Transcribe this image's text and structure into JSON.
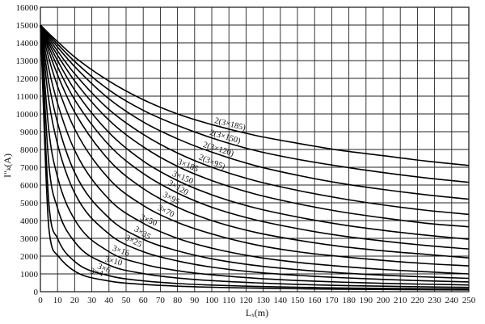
{
  "chart_data": {
    "type": "line",
    "title": "",
    "xlabel": "Lₓ(m)",
    "ylabel": "I\"ₖ(A)",
    "xlim": [
      0,
      250
    ],
    "ylim": [
      0,
      16000
    ],
    "x_ticks": [
      0,
      10,
      20,
      30,
      40,
      50,
      60,
      70,
      80,
      90,
      100,
      110,
      120,
      130,
      140,
      150,
      160,
      170,
      180,
      190,
      200,
      210,
      220,
      230,
      240,
      250
    ],
    "y_ticks": [
      0,
      1000,
      2000,
      3000,
      4000,
      5000,
      6000,
      7000,
      8000,
      9000,
      10000,
      11000,
      12000,
      13000,
      14000,
      15000,
      16000
    ],
    "grid": true,
    "x": [
      0,
      5,
      10,
      20,
      40,
      60,
      80,
      100,
      125,
      150,
      175,
      200,
      225,
      250
    ],
    "series": [
      {
        "name": "2(3×185)",
        "values": [
          15000,
          14520,
          14070,
          13200,
          11850,
          10800,
          10000,
          9400,
          8800,
          8350,
          7950,
          7650,
          7350,
          7100
        ]
      },
      {
        "name": "2(3×150)",
        "values": [
          15000,
          14450,
          13930,
          12950,
          11350,
          10200,
          9350,
          8650,
          7950,
          7450,
          7050,
          6700,
          6400,
          6150
        ]
      },
      {
        "name": "2(3×120)",
        "values": [
          15000,
          14360,
          13760,
          12660,
          10850,
          9550,
          8600,
          7850,
          7100,
          6550,
          6100,
          5750,
          5450,
          5200
        ]
      },
      {
        "name": "2(3×95)",
        "values": [
          15000,
          14240,
          13540,
          12260,
          10250,
          8850,
          7800,
          7000,
          6250,
          5700,
          5250,
          4880,
          4580,
          4350
        ]
      },
      {
        "name": "3×185",
        "values": [
          15000,
          14100,
          13300,
          11850,
          9650,
          8150,
          7050,
          6250,
          5500,
          4950,
          4500,
          4150,
          3850,
          3650
        ]
      },
      {
        "name": "3×150",
        "values": [
          15000,
          13950,
          13000,
          11350,
          8950,
          7350,
          6250,
          5450,
          4720,
          4200,
          3780,
          3450,
          3180,
          2950
        ]
      },
      {
        "name": "3×120",
        "values": [
          15000,
          13750,
          12650,
          10800,
          8250,
          6650,
          5550,
          4750,
          4050,
          3550,
          3150,
          2850,
          2600,
          2400
        ]
      },
      {
        "name": "3×95",
        "values": [
          15000,
          13500,
          12200,
          10100,
          7400,
          5800,
          4750,
          4000,
          3350,
          2900,
          2550,
          2300,
          2100,
          1900
        ]
      },
      {
        "name": "3×70",
        "values": [
          15000,
          13100,
          11550,
          9150,
          6350,
          4850,
          3900,
          3250,
          2650,
          2250,
          1980,
          1760,
          1580,
          1450
        ]
      },
      {
        "name": "3×50",
        "values": [
          15000,
          12500,
          10600,
          7950,
          5200,
          3850,
          3000,
          2450,
          1970,
          1650,
          1430,
          1250,
          1120,
          1000
        ]
      },
      {
        "name": "3×35",
        "values": [
          15000,
          11700,
          9500,
          6700,
          4150,
          2950,
          2300,
          1850,
          1480,
          1240,
          1060,
          930,
          830,
          750
        ]
      },
      {
        "name": "3×25",
        "values": [
          15000,
          10700,
          8300,
          5550,
          3250,
          2250,
          1730,
          1380,
          1100,
          920,
          790,
          690,
          610,
          550
        ]
      },
      {
        "name": "3×16",
        "values": [
          15000,
          9000,
          6450,
          4050,
          2250,
          1550,
          1180,
          950,
          760,
          630,
          540,
          470,
          420,
          380
        ]
      },
      {
        "name": "3×10",
        "values": [
          15000,
          7100,
          4700,
          2800,
          1500,
          1020,
          770,
          620,
          500,
          410,
          350,
          310,
          270,
          240
        ]
      },
      {
        "name": "3×6",
        "values": [
          15000,
          4900,
          3000,
          1700,
          900,
          610,
          460,
          370,
          300,
          250,
          210,
          185,
          165,
          150
        ]
      },
      {
        "name": "3×4",
        "values": [
          15000,
          3500,
          2050,
          1150,
          600,
          410,
          310,
          250,
          200,
          165,
          140,
          125,
          110,
          100
        ]
      }
    ]
  }
}
